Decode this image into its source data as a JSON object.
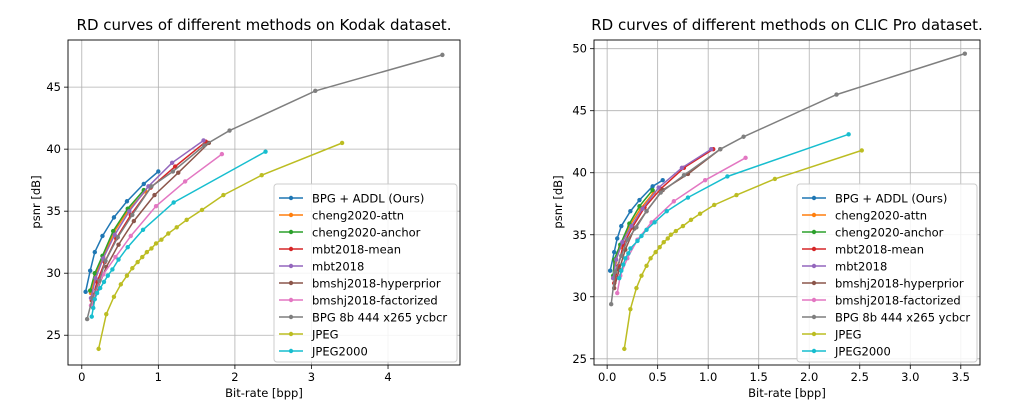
{
  "colors": {
    "BPG + ADDL (Ours)": "#1f77b4",
    "cheng2020-attn": "#ff7f0e",
    "cheng2020-anchor": "#2ca02c",
    "mbt2018-mean": "#d62728",
    "mbt2018": "#9467bd",
    "bmshj2018-hyperprior": "#8c564b",
    "bmshj2018-factorized": "#e377c2",
    "BPG 8b 444 x265 ycbcr": "#7f7f7f",
    "JPEG": "#bcbd22",
    "JPEG2000": "#17becf"
  },
  "chart_data": [
    {
      "type": "line",
      "title": "RD curves of different methods on Kodak dataset.",
      "xlabel": "Bit-rate [bpp]",
      "ylabel": "psnr [dB]",
      "xlim": [
        -0.18,
        4.94
      ],
      "ylim": [
        22.6,
        48.8
      ],
      "xticks": [
        0,
        1,
        2,
        3,
        4
      ],
      "yticks": [
        25,
        30,
        35,
        40,
        45
      ],
      "grid": true,
      "legend": "lower-right",
      "series": [
        {
          "name": "BPG + ADDL (Ours)",
          "x": [
            0.05,
            0.11,
            0.17,
            0.27,
            0.42,
            0.59,
            0.81,
            1.0
          ],
          "y": [
            28.5,
            30.2,
            31.7,
            33.0,
            34.5,
            35.8,
            37.2,
            38.2
          ]
        },
        {
          "name": "cheng2020-attn",
          "x": [
            0.12,
            0.18,
            0.28,
            0.42,
            0.61,
            0.83
          ],
          "y": [
            28.4,
            29.9,
            31.3,
            33.3,
            35.1,
            36.6
          ]
        },
        {
          "name": "cheng2020-anchor",
          "x": [
            0.11,
            0.17,
            0.27,
            0.41,
            0.6,
            0.81
          ],
          "y": [
            28.6,
            30.0,
            31.4,
            33.4,
            35.2,
            36.7
          ]
        },
        {
          "name": "mbt2018-mean",
          "x": [
            0.13,
            0.2,
            0.3,
            0.45,
            0.64,
            0.9,
            1.22,
            1.62
          ],
          "y": [
            27.8,
            29.3,
            30.9,
            32.8,
            34.7,
            36.9,
            38.6,
            40.6
          ]
        },
        {
          "name": "mbt2018",
          "x": [
            0.12,
            0.18,
            0.28,
            0.43,
            0.62,
            0.87,
            1.18,
            1.59
          ],
          "y": [
            28.0,
            29.6,
            31.2,
            33.1,
            35.0,
            37.0,
            38.9,
            40.7
          ]
        },
        {
          "name": "bmshj2018-hyperprior",
          "x": [
            0.14,
            0.21,
            0.32,
            0.48,
            0.68,
            0.95,
            1.26,
            1.66
          ],
          "y": [
            27.3,
            28.8,
            30.5,
            32.3,
            34.2,
            36.3,
            38.1,
            40.5
          ]
        },
        {
          "name": "bmshj2018-factorized",
          "x": [
            0.12,
            0.18,
            0.28,
            0.44,
            0.64,
            0.97,
            1.35,
            1.83
          ],
          "y": [
            27.4,
            28.5,
            29.9,
            31.3,
            33.0,
            35.4,
            37.4,
            39.6
          ]
        },
        {
          "name": "BPG 8b 444 x265 ycbcr",
          "x": [
            0.07,
            0.14,
            0.23,
            0.31,
            0.47,
            0.66,
            0.91,
            1.19,
            1.6,
            1.93,
            3.05,
            4.71
          ],
          "y": [
            26.3,
            28.0,
            29.4,
            31.0,
            32.9,
            34.7,
            37.0,
            38.2,
            40.3,
            41.5,
            44.7,
            47.6
          ]
        },
        {
          "name": "JPEG",
          "x": [
            0.22,
            0.32,
            0.42,
            0.51,
            0.59,
            0.66,
            0.73,
            0.79,
            0.85,
            0.91,
            0.97,
            1.04,
            1.13,
            1.24,
            1.37,
            1.57,
            1.85,
            2.35,
            3.4
          ],
          "y": [
            23.9,
            26.7,
            28.1,
            29.1,
            29.8,
            30.4,
            30.9,
            31.3,
            31.7,
            32.0,
            32.4,
            32.7,
            33.2,
            33.7,
            34.3,
            35.1,
            36.3,
            37.9,
            40.5
          ]
        },
        {
          "name": "JPEG2000",
          "x": [
            0.13,
            0.15,
            0.17,
            0.2,
            0.24,
            0.29,
            0.34,
            0.4,
            0.48,
            0.6,
            0.8,
            1.2,
            2.4
          ],
          "y": [
            26.5,
            27.2,
            27.9,
            28.4,
            28.8,
            29.3,
            29.8,
            30.3,
            31.1,
            32.1,
            33.5,
            35.7,
            39.8
          ]
        }
      ]
    },
    {
      "type": "line",
      "title": "RD curves of different methods on CLIC Pro dataset.",
      "xlabel": "Bit-rate [bpp]",
      "ylabel": "psnr [dB]",
      "xlim": [
        -0.13,
        3.69
      ],
      "ylim": [
        24.5,
        50.7
      ],
      "xticks": [
        0.0,
        0.5,
        1.0,
        1.5,
        2.0,
        2.5,
        3.0,
        3.5
      ],
      "xtick_labels": [
        "0.0",
        "0.5",
        "1.0",
        "1.5",
        "2.0",
        "2.5",
        "3.0",
        "3.5"
      ],
      "yticks": [
        25,
        30,
        35,
        40,
        45,
        50
      ],
      "grid": true,
      "legend": "lower-right",
      "series": [
        {
          "name": "BPG + ADDL (Ours)",
          "x": [
            0.03,
            0.07,
            0.1,
            0.14,
            0.23,
            0.32,
            0.45,
            0.55
          ],
          "y": [
            32.1,
            33.6,
            34.7,
            35.7,
            36.9,
            37.8,
            38.9,
            39.4
          ]
        },
        {
          "name": "cheng2020-attn",
          "x": [
            0.06,
            0.08,
            0.13,
            0.22,
            0.33,
            0.46
          ],
          "y": [
            31.5,
            32.8,
            34.0,
            35.7,
            37.1,
            38.4
          ]
        },
        {
          "name": "cheng2020-anchor",
          "x": [
            0.06,
            0.07,
            0.13,
            0.22,
            0.32,
            0.45
          ],
          "y": [
            31.7,
            33.0,
            34.2,
            35.9,
            37.3,
            38.6
          ]
        },
        {
          "name": "mbt2018-mean",
          "x": [
            0.07,
            0.11,
            0.16,
            0.25,
            0.37,
            0.53,
            0.76,
            1.05
          ],
          "y": [
            31.1,
            32.5,
            34.2,
            35.6,
            37.2,
            38.7,
            40.4,
            41.9
          ]
        },
        {
          "name": "mbt2018",
          "x": [
            0.06,
            0.09,
            0.15,
            0.24,
            0.35,
            0.51,
            0.74,
            1.03
          ],
          "y": [
            31.5,
            33.0,
            34.4,
            35.7,
            37.1,
            38.8,
            40.4,
            41.9
          ]
        },
        {
          "name": "bmshj2018-hyperprior",
          "x": [
            0.07,
            0.12,
            0.18,
            0.27,
            0.39,
            0.55,
            0.8,
            1.12
          ],
          "y": [
            30.7,
            32.2,
            33.8,
            35.5,
            36.9,
            38.6,
            39.9,
            41.9
          ]
        },
        {
          "name": "bmshj2018-factorized",
          "x": [
            0.1,
            0.13,
            0.2,
            0.3,
            0.44,
            0.66,
            0.97,
            1.37
          ],
          "y": [
            30.3,
            31.7,
            33.1,
            34.6,
            36.0,
            37.7,
            39.4,
            41.2
          ]
        },
        {
          "name": "BPG 8b 444 x265 ycbcr",
          "x": [
            0.04,
            0.08,
            0.14,
            0.2,
            0.29,
            0.39,
            0.53,
            0.76,
            1.12,
            1.35,
            2.27,
            3.54
          ],
          "y": [
            29.4,
            32.0,
            33.3,
            34.6,
            35.6,
            36.9,
            38.4,
            39.8,
            41.9,
            42.9,
            46.3,
            49.6
          ]
        },
        {
          "name": "JPEG",
          "x": [
            0.17,
            0.23,
            0.29,
            0.34,
            0.39,
            0.43,
            0.48,
            0.52,
            0.56,
            0.6,
            0.63,
            0.68,
            0.75,
            0.83,
            0.92,
            1.06,
            1.28,
            1.66,
            2.52
          ],
          "y": [
            25.8,
            29.0,
            30.7,
            31.7,
            32.5,
            33.1,
            33.6,
            34.0,
            34.4,
            34.7,
            35.0,
            35.3,
            35.7,
            36.2,
            36.7,
            37.4,
            38.2,
            39.5,
            41.8
          ]
        },
        {
          "name": "JPEG2000",
          "x": [
            0.12,
            0.14,
            0.16,
            0.18,
            0.21,
            0.23,
            0.3,
            0.34,
            0.39,
            0.47,
            0.59,
            0.8,
            1.19,
            2.39
          ],
          "y": [
            31.5,
            32.1,
            32.6,
            33.1,
            33.5,
            33.9,
            34.5,
            34.9,
            35.4,
            36.0,
            36.9,
            38.0,
            39.7,
            43.1
          ]
        }
      ]
    }
  ]
}
